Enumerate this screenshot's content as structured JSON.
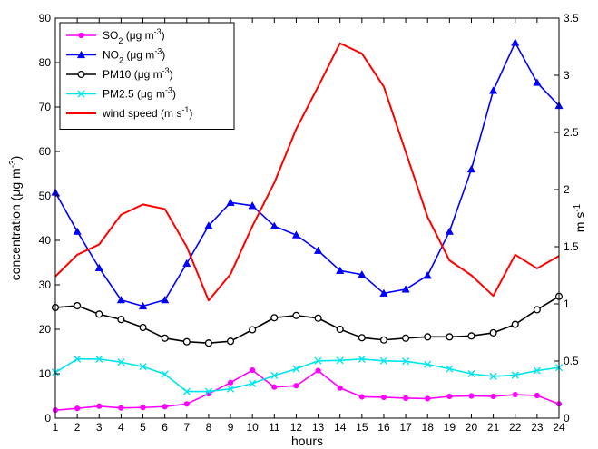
{
  "chart_data": {
    "type": "line",
    "xlabel": "hours",
    "ylabel_left": {
      "base": "concentration (",
      "unit": "μg m",
      "sup": "-3",
      "close": ")"
    },
    "ylabel_right": {
      "unit": "m s",
      "sup": "-1"
    },
    "x": [
      1,
      2,
      3,
      4,
      5,
      6,
      7,
      8,
      9,
      10,
      11,
      12,
      13,
      14,
      15,
      16,
      17,
      18,
      19,
      20,
      21,
      22,
      23,
      24
    ],
    "xlim": [
      1,
      24
    ],
    "ylim_left": [
      0,
      90
    ],
    "ylim_right": [
      0,
      3.5
    ],
    "yticks_left": [
      0,
      10,
      20,
      30,
      40,
      50,
      60,
      70,
      80,
      90
    ],
    "yticks_right": [
      0,
      0.5,
      1,
      1.5,
      2,
      2.5,
      3,
      3.5
    ],
    "ytick_labels_right": [
      "0",
      "0.5",
      "1",
      "1.5",
      "2",
      "2.5",
      "3",
      "3.5"
    ],
    "legend_position": "top-left",
    "series": [
      {
        "label": {
          "pre": "SO",
          "sub": "2",
          "mid": " (μg m",
          "sup": "-3",
          "post": ")"
        },
        "color": "#ff00ff",
        "marker": "dot",
        "axis": "left",
        "values": [
          1.8,
          2.2,
          2.7,
          2.3,
          2.4,
          2.6,
          3.2,
          5.5,
          8.0,
          10.8,
          7.0,
          7.3,
          10.7,
          6.8,
          4.8,
          4.7,
          4.5,
          4.4,
          4.9,
          5.0,
          4.9,
          5.3,
          5.1,
          3.2
        ]
      },
      {
        "label": {
          "pre": "NO",
          "sub": "2",
          "mid": " (μg m",
          "sup": "-3",
          "post": ")"
        },
        "color": "#0000ff",
        "marker": "triangle",
        "axis": "left",
        "values": [
          50.8,
          42.0,
          33.8,
          26.6,
          25.2,
          26.6,
          34.8,
          43.3,
          48.5,
          47.8,
          43.2,
          41.2,
          37.7,
          33.2,
          32.3,
          28.1,
          29.0,
          32.1,
          42.0,
          56.0,
          73.7,
          84.5,
          75.5,
          70.3
        ]
      },
      {
        "label": {
          "pre": "PM10",
          "sub": "",
          "mid": " (μg m",
          "sup": "-3",
          "post": ")"
        },
        "color": "#000000",
        "marker": "circle",
        "axis": "left",
        "values": [
          24.9,
          25.3,
          23.4,
          22.2,
          20.4,
          18.0,
          17.2,
          16.9,
          17.3,
          19.9,
          22.6,
          23.1,
          22.5,
          20.0,
          18.1,
          17.6,
          18.0,
          18.3,
          18.3,
          18.5,
          19.2,
          21.1,
          24.4,
          27.4
        ]
      },
      {
        "label": {
          "pre": "PM2.5",
          "sub": "",
          "mid": " (μg m",
          "sup": "-3",
          "post": ")"
        },
        "color": "#00e5ee",
        "marker": "x",
        "axis": "left",
        "values": [
          10.3,
          13.3,
          13.3,
          12.6,
          11.6,
          9.9,
          6.0,
          6.0,
          6.6,
          7.8,
          9.6,
          11.1,
          12.9,
          13.0,
          13.3,
          12.9,
          12.8,
          12.1,
          11.1,
          10.0,
          9.4,
          9.7,
          10.7,
          11.4
        ]
      },
      {
        "label": {
          "pre": "wind speed (m s",
          "sub": "",
          "mid": "",
          "sup": "-1",
          "post": ")"
        },
        "color": "#ff0000",
        "marker": "none",
        "axis": "right",
        "values": [
          1.24,
          1.43,
          1.52,
          1.78,
          1.87,
          1.83,
          1.5,
          1.03,
          1.26,
          1.68,
          2.06,
          2.53,
          2.9,
          3.28,
          3.19,
          2.9,
          2.33,
          1.76,
          1.38,
          1.25,
          1.07,
          1.43,
          1.31,
          1.42
        ]
      }
    ]
  }
}
